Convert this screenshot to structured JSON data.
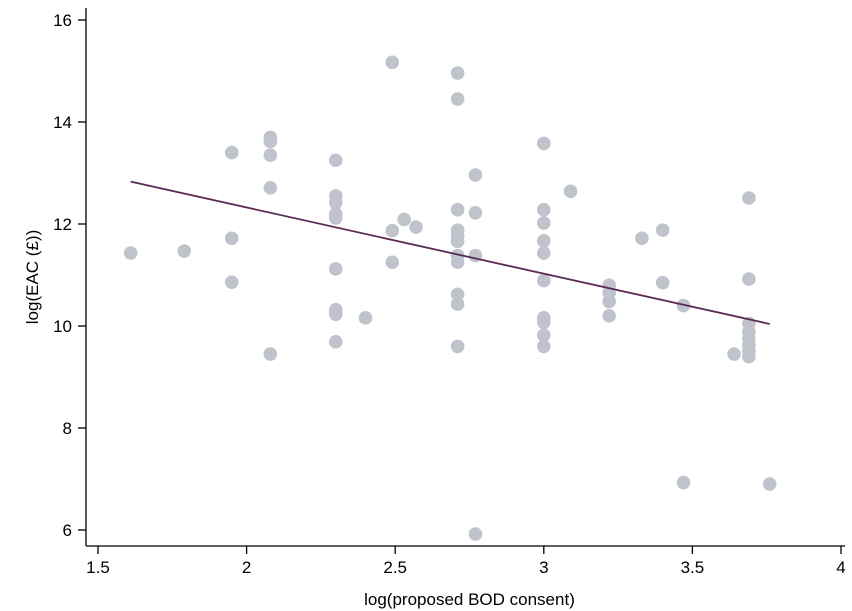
{
  "chart_data": {
    "type": "scatter",
    "xlabel": "log(proposed BOD consent)",
    "ylabel": "log(EAC (£))",
    "xlim": [
      1.5,
      4
    ],
    "ylim": [
      6,
      16
    ],
    "x_ticks": [
      1.5,
      2,
      2.5,
      3,
      3.5,
      4
    ],
    "x_tick_labels": [
      "1.5",
      "2",
      "2.5",
      "3",
      "3.5",
      "4"
    ],
    "y_ticks": [
      6,
      8,
      10,
      12,
      14,
      16
    ],
    "y_tick_labels": [
      "6",
      "8",
      "10",
      "12",
      "14",
      "16"
    ],
    "grid": false,
    "legend": "none",
    "colors": {
      "points": "#bfc3cc",
      "fit_line": "#5b2a55",
      "axis": "#000000"
    },
    "series": [
      {
        "kind": "scatter",
        "points": [
          [
            1.61,
            11.43
          ],
          [
            1.79,
            11.47
          ],
          [
            1.95,
            13.4
          ],
          [
            1.95,
            11.72
          ],
          [
            1.95,
            10.86
          ],
          [
            2.08,
            13.7
          ],
          [
            2.08,
            13.62
          ],
          [
            2.08,
            13.35
          ],
          [
            2.08,
            12.71
          ],
          [
            2.08,
            9.45
          ],
          [
            2.3,
            13.25
          ],
          [
            2.3,
            12.55
          ],
          [
            2.3,
            12.42
          ],
          [
            2.3,
            12.2
          ],
          [
            2.3,
            12.12
          ],
          [
            2.3,
            11.12
          ],
          [
            2.3,
            10.32
          ],
          [
            2.3,
            10.23
          ],
          [
            2.3,
            9.69
          ],
          [
            2.4,
            10.16
          ],
          [
            2.49,
            15.17
          ],
          [
            2.49,
            11.87
          ],
          [
            2.49,
            11.25
          ],
          [
            2.53,
            12.09
          ],
          [
            2.57,
            11.94
          ],
          [
            2.71,
            14.96
          ],
          [
            2.71,
            14.45
          ],
          [
            2.71,
            12.28
          ],
          [
            2.71,
            11.88
          ],
          [
            2.71,
            11.77
          ],
          [
            2.71,
            11.66
          ],
          [
            2.71,
            11.38
          ],
          [
            2.71,
            11.25
          ],
          [
            2.71,
            10.62
          ],
          [
            2.71,
            10.43
          ],
          [
            2.71,
            9.6
          ],
          [
            2.77,
            12.96
          ],
          [
            2.77,
            12.22
          ],
          [
            2.77,
            11.38
          ],
          [
            2.77,
            5.92
          ],
          [
            3.0,
            13.58
          ],
          [
            3.0,
            12.28
          ],
          [
            3.0,
            12.02
          ],
          [
            3.0,
            11.67
          ],
          [
            3.0,
            11.43
          ],
          [
            3.0,
            10.89
          ],
          [
            3.0,
            10.16
          ],
          [
            3.0,
            10.07
          ],
          [
            3.0,
            9.82
          ],
          [
            3.0,
            9.6
          ],
          [
            3.09,
            12.64
          ],
          [
            3.22,
            10.8
          ],
          [
            3.22,
            10.65
          ],
          [
            3.22,
            10.48
          ],
          [
            3.22,
            10.2
          ],
          [
            3.33,
            11.72
          ],
          [
            3.4,
            11.88
          ],
          [
            3.4,
            10.85
          ],
          [
            3.47,
            10.4
          ],
          [
            3.47,
            6.93
          ],
          [
            3.64,
            9.45
          ],
          [
            3.69,
            12.51
          ],
          [
            3.69,
            10.92
          ],
          [
            3.69,
            10.05
          ],
          [
            3.69,
            9.88
          ],
          [
            3.69,
            9.75
          ],
          [
            3.69,
            9.62
          ],
          [
            3.69,
            9.5
          ],
          [
            3.69,
            9.4
          ],
          [
            3.76,
            6.9
          ]
        ]
      },
      {
        "kind": "line",
        "points": [
          [
            1.61,
            12.83
          ],
          [
            3.76,
            10.04
          ]
        ]
      }
    ]
  }
}
